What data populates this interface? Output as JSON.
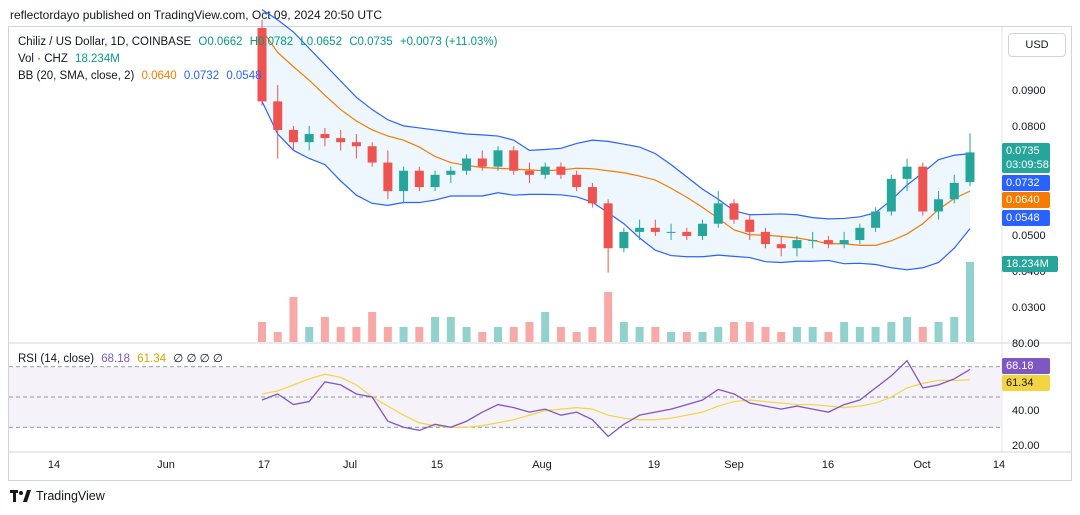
{
  "published": "reflectordayo published on TradingView.com, Oct 09, 2024 20:50 UTC",
  "legend": {
    "symbol": "Chiliz / US Dollar, 1D, COINBASE",
    "open": "O0.0662",
    "high": "H0.0782",
    "low": "L0.0652",
    "close": "C0.0735",
    "change": "+0.0073 (+11.03%)",
    "vol_label": "Vol · CHZ",
    "vol_value": "18.234M",
    "bb_label": "BB (20, SMA, close, 2)",
    "bb_basis": "0.0640",
    "bb_upper": "0.0732",
    "bb_lower": "0.0548",
    "rsi_label": "RSI (14, close)",
    "rsi_value": "68.18",
    "rsi_ma": "61.34",
    "rsi_extra": "∅ ∅ ∅ ∅"
  },
  "currency": "USD",
  "price_axis": [
    "0.0900",
    "0.0800",
    "0.0500",
    "0.0400",
    "0.0300"
  ],
  "rsi_axis": [
    "80.00",
    "40.00",
    "20.00"
  ],
  "time_axis": [
    "14",
    "Jun",
    "17",
    "Jul",
    "15",
    "Aug",
    "19",
    "Sep",
    "16",
    "Oct",
    "14"
  ],
  "tags": {
    "last_price": "0.0735",
    "countdown": "03:09:58",
    "bb_upper": "0.0732",
    "bb_basis": "0.0640",
    "bb_lower": "0.0548",
    "volume": "18.234M",
    "rsi": "68.18",
    "rsi_ma": "61.34"
  },
  "colors": {
    "up": "#26a69a",
    "down": "#ef5350",
    "bb_band": "#2962ff",
    "bb_basis": "#f57c00",
    "rsi": "#7e57c2",
    "rsi_ma": "#f5d442"
  },
  "brand": "TradingView",
  "chart_data": {
    "type": "candlestick",
    "title": "Chiliz / US Dollar, 1D, COINBASE",
    "ylim": [
      0.027,
      0.104
    ],
    "rsi_ylim": [
      15,
      85
    ],
    "rsi_levels": [
      70,
      50,
      30
    ],
    "bb": {
      "upper": [
        0.1085,
        0.106,
        0.103,
        0.099,
        0.095,
        0.091,
        0.087,
        0.084,
        0.0815,
        0.08,
        0.0795,
        0.079,
        0.0785,
        0.078,
        0.0778,
        0.0775,
        0.0765,
        0.074,
        0.0742,
        0.0745,
        0.0757,
        0.0765,
        0.0762,
        0.0755,
        0.0748,
        0.0732,
        0.0705,
        0.0675,
        0.0645,
        0.062,
        0.0592,
        0.0582,
        0.0583,
        0.0584,
        0.0582,
        0.0575,
        0.0572,
        0.0573,
        0.0577,
        0.0587,
        0.0618,
        0.0655,
        0.0685,
        0.0717,
        0.0728,
        0.0732
      ],
      "basis": [
        0.1035,
        0.098,
        0.0945,
        0.0912,
        0.0875,
        0.084,
        0.0812,
        0.079,
        0.0775,
        0.0765,
        0.0748,
        0.0725,
        0.071,
        0.0703,
        0.0698,
        0.0696,
        0.0694,
        0.0692,
        0.069,
        0.0692,
        0.0696,
        0.0695,
        0.069,
        0.0685,
        0.0677,
        0.0667,
        0.0647,
        0.0625,
        0.06,
        0.0573,
        0.0545,
        0.0533,
        0.0532,
        0.0529,
        0.0525,
        0.0519,
        0.0511,
        0.0511,
        0.0507,
        0.0507,
        0.0518,
        0.0535,
        0.056,
        0.0595,
        0.0622,
        0.064
      ],
      "lower": [
        0.086,
        0.078,
        0.074,
        0.072,
        0.0705,
        0.0665,
        0.063,
        0.061,
        0.0605,
        0.0612,
        0.0612,
        0.0618,
        0.0628,
        0.0628,
        0.0628,
        0.0636,
        0.063,
        0.0632,
        0.0632,
        0.0631,
        0.0626,
        0.0613,
        0.0587,
        0.056,
        0.0525,
        0.0495,
        0.0482,
        0.0479,
        0.0479,
        0.0483,
        0.048,
        0.0477,
        0.0467,
        0.0465,
        0.0468,
        0.0468,
        0.047,
        0.0462,
        0.0463,
        0.046,
        0.0452,
        0.0447,
        0.0452,
        0.0465,
        0.05,
        0.0548
      ]
    },
    "candles": [
      [
        0.104,
        0.106,
        0.085,
        0.086
      ],
      [
        0.086,
        0.09,
        0.072,
        0.079
      ],
      [
        0.079,
        0.08,
        0.074,
        0.076
      ],
      [
        0.076,
        0.08,
        0.074,
        0.078
      ],
      [
        0.078,
        0.0795,
        0.075,
        0.077
      ],
      [
        0.077,
        0.079,
        0.074,
        0.076
      ],
      [
        0.076,
        0.078,
        0.072,
        0.075
      ],
      [
        0.075,
        0.076,
        0.07,
        0.071
      ],
      [
        0.071,
        0.074,
        0.062,
        0.064
      ],
      [
        0.064,
        0.07,
        0.061,
        0.069
      ],
      [
        0.069,
        0.07,
        0.064,
        0.065
      ],
      [
        0.065,
        0.069,
        0.064,
        0.068
      ],
      [
        0.068,
        0.07,
        0.066,
        0.069
      ],
      [
        0.069,
        0.073,
        0.068,
        0.072
      ],
      [
        0.072,
        0.074,
        0.069,
        0.07
      ],
      [
        0.07,
        0.075,
        0.069,
        0.074
      ],
      [
        0.074,
        0.075,
        0.068,
        0.069
      ],
      [
        0.069,
        0.071,
        0.066,
        0.068
      ],
      [
        0.068,
        0.071,
        0.067,
        0.07
      ],
      [
        0.07,
        0.071,
        0.067,
        0.068
      ],
      [
        0.068,
        0.069,
        0.064,
        0.065
      ],
      [
        0.065,
        0.066,
        0.06,
        0.061
      ],
      [
        0.061,
        0.062,
        0.044,
        0.05
      ],
      [
        0.05,
        0.055,
        0.049,
        0.054
      ],
      [
        0.054,
        0.057,
        0.052,
        0.055
      ],
      [
        0.055,
        0.057,
        0.053,
        0.054
      ],
      [
        0.054,
        0.056,
        0.052,
        0.054
      ],
      [
        0.054,
        0.055,
        0.052,
        0.053
      ],
      [
        0.053,
        0.057,
        0.052,
        0.056
      ],
      [
        0.056,
        0.064,
        0.055,
        0.061
      ],
      [
        0.061,
        0.062,
        0.056,
        0.057
      ],
      [
        0.057,
        0.058,
        0.052,
        0.054
      ],
      [
        0.054,
        0.055,
        0.05,
        0.051
      ],
      [
        0.051,
        0.053,
        0.048,
        0.05
      ],
      [
        0.05,
        0.053,
        0.048,
        0.052
      ],
      [
        0.052,
        0.054,
        0.05,
        0.052
      ],
      [
        0.052,
        0.053,
        0.05,
        0.051
      ],
      [
        0.051,
        0.054,
        0.05,
        0.052
      ],
      [
        0.052,
        0.056,
        0.051,
        0.055
      ],
      [
        0.055,
        0.06,
        0.054,
        0.059
      ],
      [
        0.059,
        0.068,
        0.058,
        0.067
      ],
      [
        0.067,
        0.072,
        0.064,
        0.07
      ],
      [
        0.07,
        0.071,
        0.058,
        0.059
      ],
      [
        0.059,
        0.064,
        0.057,
        0.062
      ],
      [
        0.062,
        0.068,
        0.061,
        0.066
      ],
      [
        0.0662,
        0.0782,
        0.0652,
        0.0735
      ]
    ],
    "volume": [
      4,
      2,
      9,
      3,
      5,
      3,
      3,
      6,
      3,
      3,
      3,
      5,
      5,
      3,
      2,
      3,
      3,
      4,
      6,
      3,
      2,
      3,
      10,
      4,
      3,
      3,
      2,
      2,
      2,
      3,
      4,
      4,
      3,
      2,
      3,
      3,
      2,
      4,
      3,
      3,
      4,
      5,
      3,
      4,
      5,
      16
    ],
    "rsi": [
      48,
      52,
      45,
      47,
      60,
      58,
      52,
      50,
      34,
      30,
      28,
      32,
      30,
      34,
      40,
      45,
      43,
      40,
      42,
      38,
      40,
      35,
      24,
      32,
      38,
      40,
      42,
      45,
      48,
      55,
      52,
      46,
      44,
      42,
      44,
      42,
      40,
      45,
      48,
      56,
      64,
      74,
      56,
      58,
      62,
      68.18
    ],
    "rsi_ma": [
      52,
      54,
      58,
      62,
      65,
      63,
      58,
      50,
      44,
      38,
      33,
      31,
      30,
      30,
      31,
      33,
      35,
      38,
      41,
      42,
      43,
      42,
      38,
      36,
      35,
      35,
      36,
      38,
      40,
      44,
      47,
      48,
      47,
      46,
      45,
      45,
      44,
      43,
      44,
      46,
      50,
      56,
      59,
      61,
      61,
      61.34
    ]
  }
}
